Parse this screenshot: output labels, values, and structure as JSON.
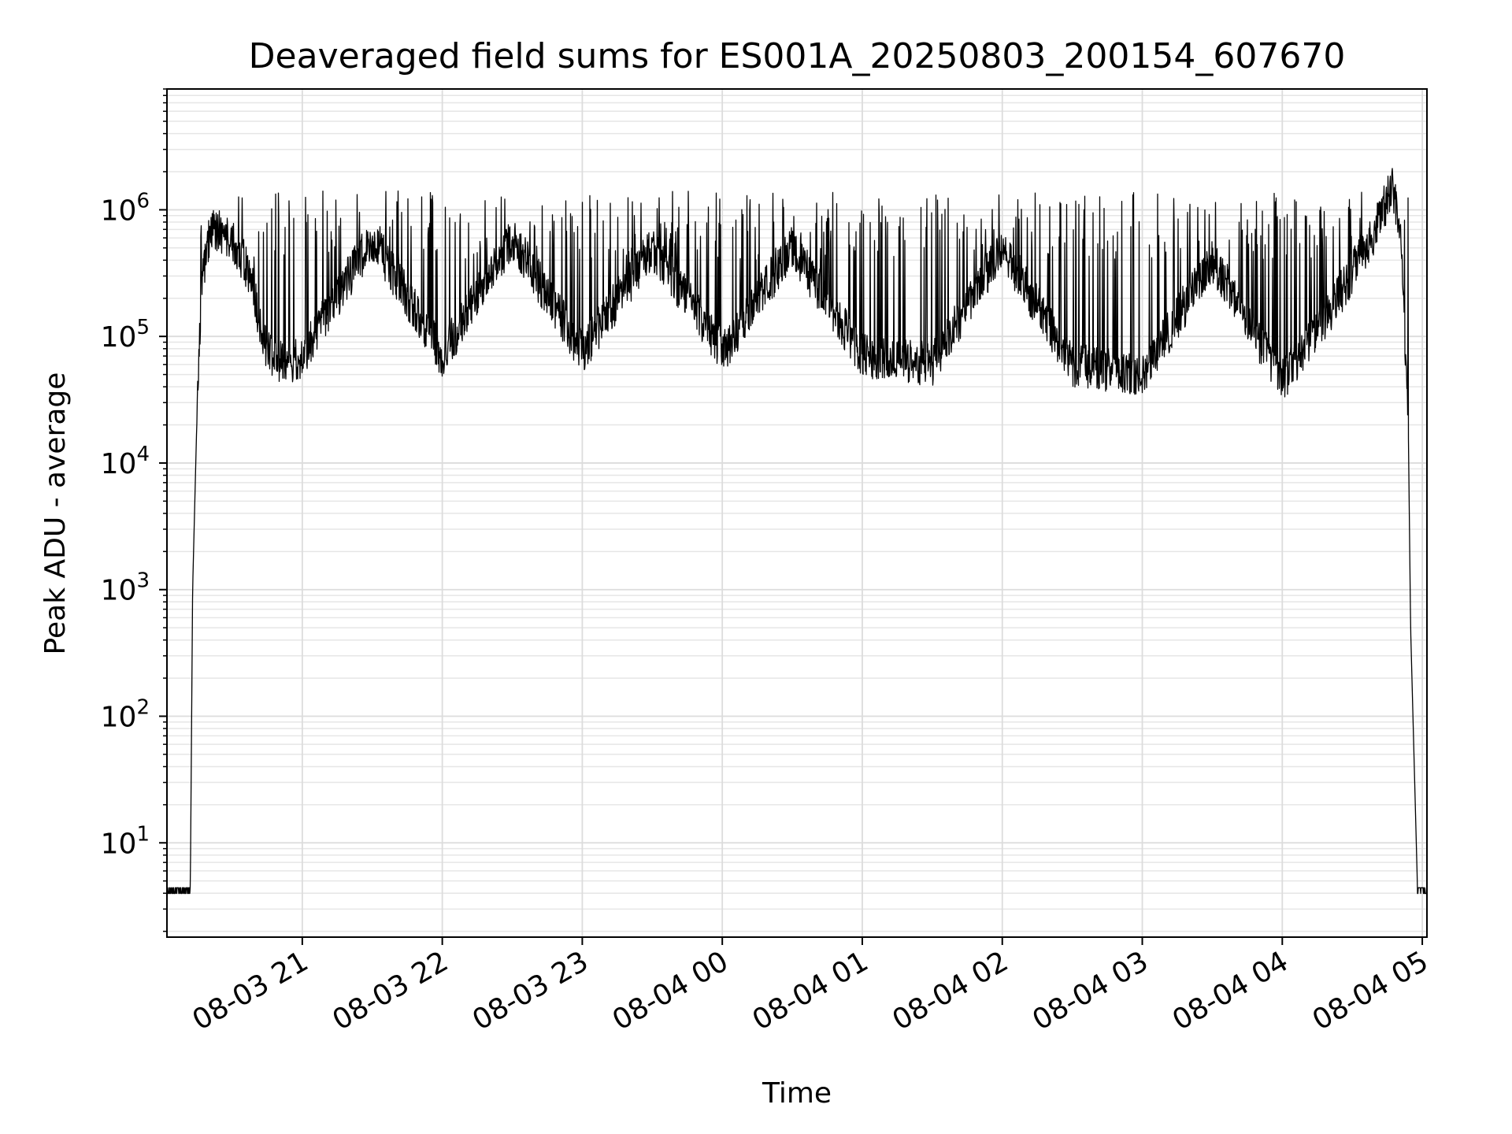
{
  "chart_data": {
    "type": "line",
    "title": "Deaveraged field sums for ES001A_20250803_200154_607670",
    "xlabel": "Time",
    "ylabel": "Peak ADU - average",
    "y_scale": "log",
    "ylim": [
      1.8,
      9000000
    ],
    "xlim": [
      "2025-08-03 20:02",
      "2025-08-04 05:02"
    ],
    "grid": true,
    "legend": "none",
    "line_color": "#000000",
    "x_ticks": [
      {
        "value": "2025-08-03 21:00",
        "label": "08-03 21"
      },
      {
        "value": "2025-08-03 22:00",
        "label": "08-03 22"
      },
      {
        "value": "2025-08-03 23:00",
        "label": "08-03 23"
      },
      {
        "value": "2025-08-04 00:00",
        "label": "08-04 00"
      },
      {
        "value": "2025-08-04 01:00",
        "label": "08-04 01"
      },
      {
        "value": "2025-08-04 02:00",
        "label": "08-04 02"
      },
      {
        "value": "2025-08-04 03:00",
        "label": "08-04 03"
      },
      {
        "value": "2025-08-04 04:00",
        "label": "08-04 04"
      },
      {
        "value": "2025-08-04 05:00",
        "label": "08-04 05"
      }
    ],
    "y_ticks": [
      {
        "value": 10,
        "base": "10",
        "exp": "1"
      },
      {
        "value": 100,
        "base": "10",
        "exp": "2"
      },
      {
        "value": 1000,
        "base": "10",
        "exp": "3"
      },
      {
        "value": 10000,
        "base": "10",
        "exp": "4"
      },
      {
        "value": 100000,
        "base": "10",
        "exp": "5"
      },
      {
        "value": 1000000,
        "base": "10",
        "exp": "6"
      }
    ],
    "series": [
      {
        "x": [
          "2025-08-03 20:02",
          "2025-08-03 20:12",
          "2025-08-03 20:13",
          "2025-08-03 20:15",
          "2025-08-03 20:17",
          "2025-08-03 20:20",
          "2025-08-03 20:23",
          "2025-08-03 20:27",
          "2025-08-03 20:32",
          "2025-08-03 20:38",
          "2025-08-03 20:43",
          "2025-08-03 20:45",
          "2025-08-03 20:48",
          "2025-08-03 20:53",
          "2025-08-03 21:00",
          "2025-08-03 21:30",
          "2025-08-03 22:00",
          "2025-08-03 22:30",
          "2025-08-03 23:00",
          "2025-08-03 23:30",
          "2025-08-04 00:00",
          "2025-08-04 00:30",
          "2025-08-04 01:00",
          "2025-08-04 01:30",
          "2025-08-04 02:00",
          "2025-08-04 02:30",
          "2025-08-04 03:00",
          "2025-08-04 03:30",
          "2025-08-04 04:00",
          "2025-08-04 04:20",
          "2025-08-04 04:40",
          "2025-08-04 04:47",
          "2025-08-04 04:50",
          "2025-08-04 04:52",
          "2025-08-04 04:54",
          "2025-08-04 04:55",
          "2025-08-04 04:56",
          "2025-08-04 04:58",
          "2025-08-04 05:02"
        ],
        "y": [
          4,
          4,
          1000,
          30000,
          250000,
          600000,
          700000,
          600000,
          500000,
          300000,
          100000,
          80000,
          65000,
          62000,
          70000,
          600000,
          70000,
          600000,
          75000,
          500000,
          75000,
          500000,
          70000,
          60000,
          500000,
          60000,
          50000,
          400000,
          45000,
          150000,
          700000,
          1500000,
          900000,
          200000,
          20000,
          500,
          100,
          4,
          4
        ]
      }
    ]
  }
}
